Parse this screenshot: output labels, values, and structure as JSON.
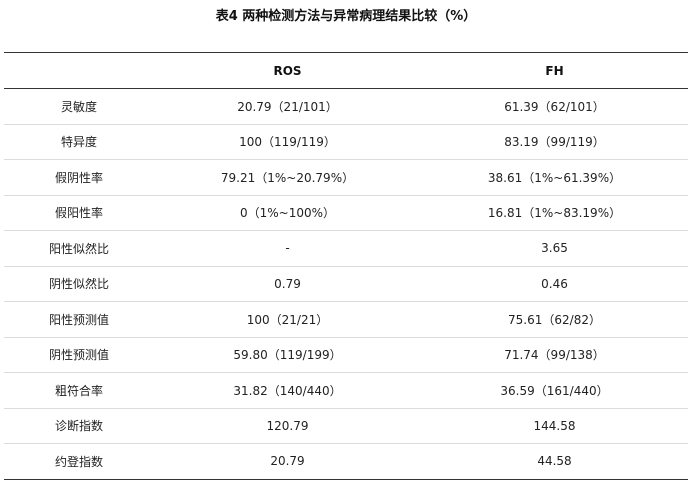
{
  "title": "表4 两种检测方法与异常病理结果比较（%）",
  "table": {
    "headers": [
      "",
      "ROS",
      "FH"
    ],
    "rows": [
      {
        "label": "灵敏度",
        "ros": "20.79（21/101）",
        "fh": "61.39（62/101）"
      },
      {
        "label": "特异度",
        "ros": "100（119/119）",
        "fh": "83.19（99/119）"
      },
      {
        "label": "假阴性率",
        "ros": "79.21（1%~20.79%）",
        "fh": "38.61（1%~61.39%）"
      },
      {
        "label": "假阳性率",
        "ros": "0（1%~100%）",
        "fh": "16.81（1%~83.19%）"
      },
      {
        "label": "阳性似然比",
        "ros": "-",
        "fh": "3.65"
      },
      {
        "label": "阴性似然比",
        "ros": "0.79",
        "fh": "0.46"
      },
      {
        "label": "阳性预测值",
        "ros": "100（21/21）",
        "fh": "75.61（62/82）"
      },
      {
        "label": "阴性预测值",
        "ros": "59.80（119/199）",
        "fh": "71.74（99/138）"
      },
      {
        "label": "粗符合率",
        "ros": "31.82（140/440）",
        "fh": "36.59（161/440）"
      },
      {
        "label": "诊断指数",
        "ros": "120.79",
        "fh": "144.58"
      },
      {
        "label": "约登指数",
        "ros": "20.79",
        "fh": "44.58"
      }
    ]
  }
}
